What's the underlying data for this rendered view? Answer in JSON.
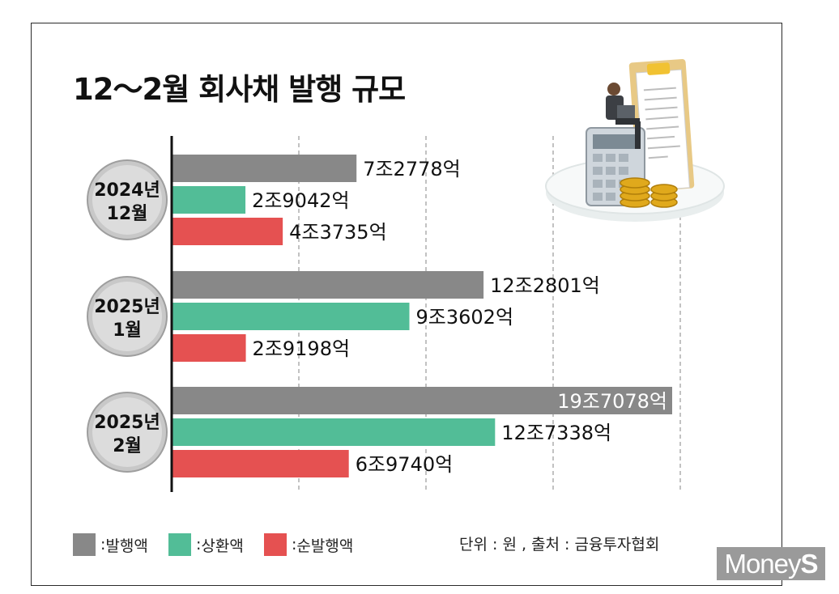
{
  "title": "12～2월 회사채 발행 규모",
  "colors": {
    "issuance": "#888888",
    "repayment": "#52bd97",
    "net_issuance": "#e55151"
  },
  "legend": [
    {
      "label": "발행액",
      "prefix": ": ",
      "color": "#888888"
    },
    {
      "label": "상환액",
      "prefix": ": ",
      "color": "#52bd97"
    },
    {
      "label": "순발행액",
      "prefix": ": ",
      "color": "#e55151"
    }
  ],
  "source_note": "단위 : 원 , 출처 : 금융투자협회",
  "logo": {
    "text_main": "Money",
    "text_end": "S"
  },
  "chart_data": {
    "type": "bar",
    "orientation": "horizontal",
    "title": "12～2월 회사채 발행 규모",
    "unit": "원",
    "categories": [
      {
        "line1": "2024년",
        "line2": "12월"
      },
      {
        "line1": "2025년",
        "line2": "1월"
      },
      {
        "line1": "2025년",
        "line2": "2월"
      }
    ],
    "series": [
      {
        "name": "발행액",
        "color": "#888888",
        "values": [
          72778,
          122801,
          197078
        ],
        "labels": [
          "7조2778억",
          "12조2801억",
          "19조7078억"
        ]
      },
      {
        "name": "상환액",
        "color": "#52bd97",
        "values": [
          29042,
          93602,
          127338
        ],
        "labels": [
          "2조9042억",
          "9조3602억",
          "12조7338억"
        ]
      },
      {
        "name": "순발행액",
        "color": "#e55151",
        "values": [
          43735,
          29198,
          69740
        ],
        "labels": [
          "4조3735억",
          "2조9198억",
          "6조9740억"
        ]
      }
    ],
    "value_unit": "억원",
    "grid": "vertical-dashed",
    "legend_position": "bottom-left"
  }
}
